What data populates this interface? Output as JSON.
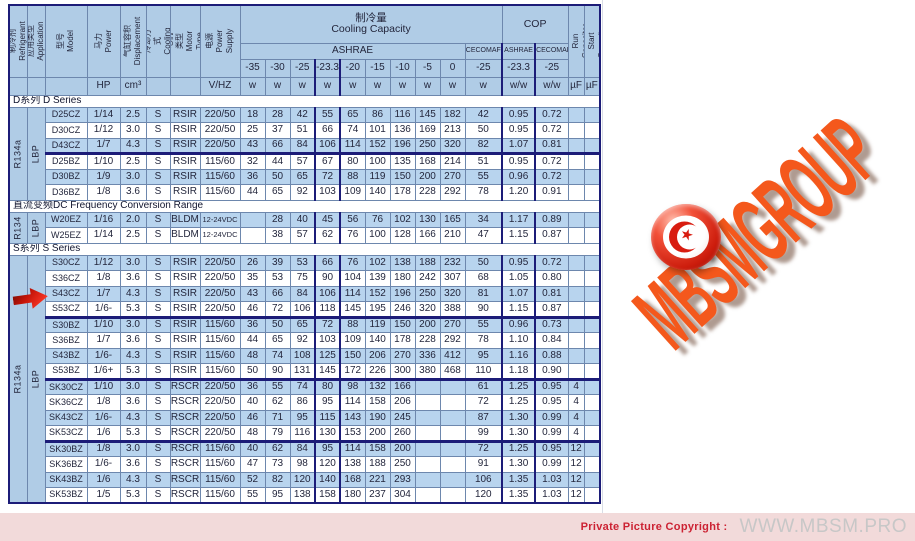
{
  "table_header": {
    "cooling_capacity": "制冷量\nCooling Capacity",
    "cop": "COP",
    "ashrae": "ASHRAE",
    "cecomaf": "CECOMAF",
    "cop_ashrae": "ASHRAE",
    "cop_cecomaf": "CECOMAF",
    "temps": [
      "-35",
      "-30",
      "-25",
      "-23.3",
      "-20",
      "-15",
      "-10",
      "-5",
      "0"
    ],
    "cecomaf_temp": "-25",
    "cop_temps": [
      "-23.3",
      "-25"
    ],
    "unit_hp": "HP",
    "unit_cm3": "cm³",
    "unit_vhz": "V/HZ",
    "unit_w": "w",
    "unit_wow": "w/w",
    "unit_uf": "µF",
    "vertical": {
      "refrigerant": "制冷剂\nRefrigerant",
      "application": "应用类型\nApplication",
      "model": "型号\nModel",
      "power": "马力\nPower",
      "displacement": "气缸容积\nDisplacement",
      "cooling": "冷却方式\nCooling",
      "motor": "电机类型\nMotor Type",
      "supply": "电源\nPower Supply",
      "run_capacitor": "运行电容\nRun Capacitor",
      "start_capacitor": "启动电容\nStart Capacitor"
    }
  },
  "sections": [
    {
      "title": "D系列 D Series",
      "refrigerant": "R134a",
      "application": "LBP",
      "rows": [
        {
          "model": "D25CZ",
          "hp": "1/14",
          "disp": "2.5",
          "cool": "S",
          "motor": "RSIR",
          "supply": "220/50",
          "vals": [
            "18",
            "28",
            "42",
            "55",
            "65",
            "86",
            "116",
            "145",
            "182"
          ],
          "cecomaf": "42",
          "cop": [
            "0.95",
            "0.72"
          ],
          "run": "",
          "start": ""
        },
        {
          "model": "D30CZ",
          "hp": "1/12",
          "disp": "3.0",
          "cool": "S",
          "motor": "RSIR",
          "supply": "220/50",
          "vals": [
            "25",
            "37",
            "51",
            "66",
            "74",
            "101",
            "136",
            "169",
            "213"
          ],
          "cecomaf": "50",
          "cop": [
            "0.95",
            "0.72"
          ],
          "run": "",
          "start": ""
        },
        {
          "model": "D43CZ",
          "hp": "1/7",
          "disp": "4.3",
          "cool": "S",
          "motor": "RSIR",
          "supply": "220/50",
          "vals": [
            "43",
            "66",
            "84",
            "106",
            "114",
            "152",
            "196",
            "250",
            "320"
          ],
          "cecomaf": "82",
          "cop": [
            "1.07",
            "0.81"
          ],
          "run": "",
          "start": ""
        },
        {
          "model": "D25BZ",
          "hp": "1/10",
          "disp": "2.5",
          "cool": "S",
          "motor": "RSIR",
          "supply": "115/60",
          "sep": true,
          "vals": [
            "32",
            "44",
            "57",
            "67",
            "80",
            "100",
            "135",
            "168",
            "214"
          ],
          "cecomaf": "51",
          "cop": [
            "0.95",
            "0.72"
          ],
          "run": "",
          "start": ""
        },
        {
          "model": "D30BZ",
          "hp": "1/9",
          "disp": "3.0",
          "cool": "S",
          "motor": "RSIR",
          "supply": "115/60",
          "vals": [
            "36",
            "50",
            "65",
            "72",
            "88",
            "119",
            "150",
            "200",
            "270"
          ],
          "cecomaf": "55",
          "cop": [
            "0.96",
            "0.72"
          ],
          "run": "",
          "start": ""
        },
        {
          "model": "D36BZ",
          "hp": "1/8",
          "disp": "3.6",
          "cool": "S",
          "motor": "RSIR",
          "supply": "115/60",
          "vals": [
            "44",
            "65",
            "92",
            "103",
            "109",
            "140",
            "178",
            "228",
            "292"
          ],
          "cecomaf": "78",
          "cop": [
            "1.20",
            "0.91"
          ],
          "run": "",
          "start": ""
        }
      ]
    },
    {
      "title": "直流变频DC Frequency Conversion Range",
      "refrigerant": "R134",
      "application": "LBP",
      "rows": [
        {
          "model": "W20EZ",
          "hp": "1/16",
          "disp": "2.0",
          "cool": "S",
          "motor": "BLDM",
          "supply": "12-24VDC",
          "vals": [
            "",
            "28",
            "40",
            "45",
            "56",
            "76",
            "102",
            "130",
            "165"
          ],
          "cecomaf": "34",
          "cop": [
            "1.17",
            "0.89"
          ],
          "run": "",
          "start": ""
        },
        {
          "model": "W25EZ",
          "hp": "1/14",
          "disp": "2.5",
          "cool": "S",
          "motor": "BLDM",
          "supply": "12-24VDC",
          "vals": [
            "",
            "38",
            "57",
            "62",
            "76",
            "100",
            "128",
            "166",
            "210"
          ],
          "cecomaf": "47",
          "cop": [
            "1.15",
            "0.87"
          ],
          "run": "",
          "start": ""
        }
      ]
    },
    {
      "title": "S系列 S Series",
      "refrigerant": "R134a",
      "application": "LBP",
      "rows": [
        {
          "model": "S30CZ",
          "hp": "1/12",
          "disp": "3.0",
          "cool": "S",
          "motor": "RSIR",
          "supply": "220/50",
          "vals": [
            "26",
            "39",
            "53",
            "66",
            "76",
            "102",
            "138",
            "188",
            "232"
          ],
          "cecomaf": "50",
          "cop": [
            "0.95",
            "0.72"
          ],
          "run": "",
          "start": ""
        },
        {
          "model": "S36CZ",
          "hp": "1/8",
          "disp": "3.6",
          "cool": "S",
          "motor": "RSIR",
          "supply": "220/50",
          "vals": [
            "35",
            "53",
            "75",
            "90",
            "104",
            "139",
            "180",
            "242",
            "307"
          ],
          "cecomaf": "68",
          "cop": [
            "1.05",
            "0.80"
          ],
          "run": "",
          "start": ""
        },
        {
          "model": "S43CZ",
          "hp": "1/7",
          "disp": "4.3",
          "cool": "S",
          "motor": "RSIR",
          "supply": "220/50",
          "vals": [
            "43",
            "66",
            "84",
            "106",
            "114",
            "152",
            "196",
            "250",
            "320"
          ],
          "cecomaf": "81",
          "cop": [
            "1.07",
            "0.81"
          ],
          "run": "",
          "start": ""
        },
        {
          "model": "S53CZ",
          "hp": "1/6-",
          "disp": "5.3",
          "cool": "S",
          "motor": "RSIR",
          "supply": "220/50",
          "vals": [
            "46",
            "72",
            "106",
            "118",
            "145",
            "195",
            "246",
            "320",
            "388"
          ],
          "cecomaf": "90",
          "cop": [
            "1.15",
            "0.87"
          ],
          "run": "",
          "start": ""
        },
        {
          "model": "S30BZ",
          "hp": "1/10",
          "disp": "3.0",
          "cool": "S",
          "motor": "RSIR",
          "supply": "115/60",
          "sep": true,
          "vals": [
            "36",
            "50",
            "65",
            "72",
            "88",
            "119",
            "150",
            "200",
            "270"
          ],
          "cecomaf": "55",
          "cop": [
            "0.96",
            "0.73"
          ],
          "run": "",
          "start": ""
        },
        {
          "model": "S36BZ",
          "hp": "1/7",
          "disp": "3.6",
          "cool": "S",
          "motor": "RSIR",
          "supply": "115/60",
          "vals": [
            "44",
            "65",
            "92",
            "103",
            "109",
            "140",
            "178",
            "228",
            "292"
          ],
          "cecomaf": "78",
          "cop": [
            "1.10",
            "0.84"
          ],
          "run": "",
          "start": ""
        },
        {
          "model": "S43BZ",
          "hp": "1/6-",
          "disp": "4.3",
          "cool": "S",
          "motor": "RSIR",
          "supply": "115/60",
          "vals": [
            "48",
            "74",
            "108",
            "125",
            "150",
            "206",
            "270",
            "336",
            "412"
          ],
          "cecomaf": "95",
          "cop": [
            "1.16",
            "0.88"
          ],
          "run": "",
          "start": ""
        },
        {
          "model": "S53BZ",
          "hp": "1/6+",
          "disp": "5.3",
          "cool": "S",
          "motor": "RSIR",
          "supply": "115/60",
          "vals": [
            "50",
            "90",
            "131",
            "145",
            "172",
            "226",
            "300",
            "380",
            "468"
          ],
          "cecomaf": "110",
          "cop": [
            "1.18",
            "0.90"
          ],
          "run": "",
          "start": ""
        },
        {
          "model": "SK30CZ",
          "hp": "1/10",
          "disp": "3.0",
          "cool": "S",
          "motor": "RSCR",
          "supply": "220/50",
          "sep": true,
          "vals": [
            "36",
            "55",
            "74",
            "80",
            "98",
            "132",
            "166",
            "",
            ""
          ],
          "cecomaf": "61",
          "cop": [
            "1.25",
            "0.95"
          ],
          "run": "4",
          "start": ""
        },
        {
          "model": "SK36CZ",
          "hp": "1/8",
          "disp": "3.6",
          "cool": "S",
          "motor": "RSCR",
          "supply": "220/50",
          "vals": [
            "40",
            "62",
            "86",
            "95",
            "114",
            "158",
            "206",
            "",
            ""
          ],
          "cecomaf": "72",
          "cop": [
            "1.25",
            "0.95"
          ],
          "run": "4",
          "start": ""
        },
        {
          "model": "SK43CZ",
          "hp": "1/6-",
          "disp": "4.3",
          "cool": "S",
          "motor": "RSCR",
          "supply": "220/50",
          "vals": [
            "46",
            "71",
            "95",
            "115",
            "143",
            "190",
            "245",
            "",
            ""
          ],
          "cecomaf": "87",
          "cop": [
            "1.30",
            "0.99"
          ],
          "run": "4",
          "start": ""
        },
        {
          "model": "SK53CZ",
          "hp": "1/6",
          "disp": "5.3",
          "cool": "S",
          "motor": "RSCR",
          "supply": "220/50",
          "vals": [
            "48",
            "79",
            "116",
            "130",
            "153",
            "200",
            "260",
            "",
            ""
          ],
          "cecomaf": "99",
          "cop": [
            "1.30",
            "0.99"
          ],
          "run": "4",
          "start": ""
        },
        {
          "model": "SK30BZ",
          "hp": "1/8",
          "disp": "3.0",
          "cool": "S",
          "motor": "RSCR",
          "supply": "115/60",
          "sep": true,
          "vals": [
            "40",
            "62",
            "84",
            "95",
            "114",
            "158",
            "200",
            "",
            ""
          ],
          "cecomaf": "72",
          "cop": [
            "1.25",
            "0.95"
          ],
          "run": "12",
          "start": ""
        },
        {
          "model": "SK36BZ",
          "hp": "1/6-",
          "disp": "3.6",
          "cool": "S",
          "motor": "RSCR",
          "supply": "115/60",
          "vals": [
            "47",
            "73",
            "98",
            "120",
            "138",
            "188",
            "250",
            "",
            ""
          ],
          "cecomaf": "91",
          "cop": [
            "1.30",
            "0.99"
          ],
          "run": "12",
          "start": ""
        },
        {
          "model": "SK43BZ",
          "hp": "1/6",
          "disp": "4.3",
          "cool": "S",
          "motor": "RSCR",
          "supply": "115/60",
          "vals": [
            "52",
            "82",
            "120",
            "140",
            "168",
            "221",
            "293",
            "",
            ""
          ],
          "cecomaf": "106",
          "cop": [
            "1.35",
            "1.03"
          ],
          "run": "12",
          "start": ""
        },
        {
          "model": "SK53BZ",
          "hp": "1/5",
          "disp": "5.3",
          "cool": "S",
          "motor": "RSCR",
          "supply": "115/60",
          "vals": [
            "55",
            "95",
            "138",
            "158",
            "180",
            "237",
            "304",
            "",
            ""
          ],
          "cecomaf": "120",
          "cop": [
            "1.35",
            "1.03"
          ],
          "run": "12",
          "start": ""
        }
      ]
    }
  ],
  "annotations": {
    "arrow_target_model": "S43CZ"
  },
  "watermark": {
    "text": "MBSMGROUP",
    "badge": "tunisia-flag-badge"
  },
  "footer": {
    "label": "Private Picture Copyright :",
    "site": "WWW.MBSM.PRO"
  },
  "colors": {
    "row_blue": "#b8d4ee",
    "header_blue": "#b0cce6",
    "grid_line": "#6d87ad",
    "navy_separator": "#1c1c78",
    "arrow_red": "#e02818",
    "watermark_orange": "#f4581c",
    "footer_pink": "#f2dada",
    "footer_red": "#cc2233",
    "footer_site_gray": "#c7c7c7"
  }
}
